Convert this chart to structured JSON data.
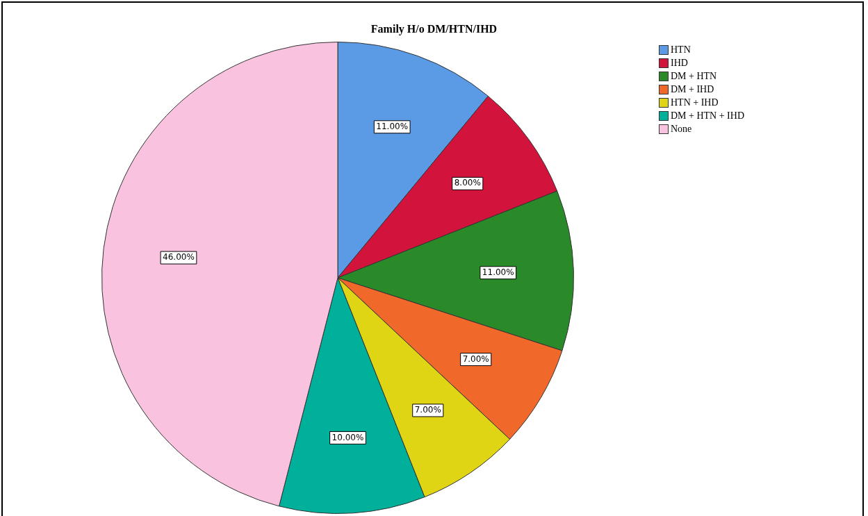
{
  "chart_data": {
    "type": "pie",
    "title": "Family H/o DM/HTN/IHD",
    "categories": [
      "HTN",
      "IHD",
      "DM + HTN",
      "DM + IHD",
      "HTN + IHD",
      "DM + HTN + IHD",
      "None"
    ],
    "values": [
      11,
      8,
      11,
      7,
      7,
      10,
      46
    ],
    "colors": [
      "#5b9be6",
      "#d2143c",
      "#2a8a2a",
      "#f0692a",
      "#e0d515",
      "#00b09a",
      "#f9c3e0"
    ],
    "value_labels": [
      "11.00%",
      "8.00%",
      "11.00%",
      "7.00%",
      "7.00%",
      "10.00%",
      "46.00%"
    ],
    "legend": "top right"
  }
}
